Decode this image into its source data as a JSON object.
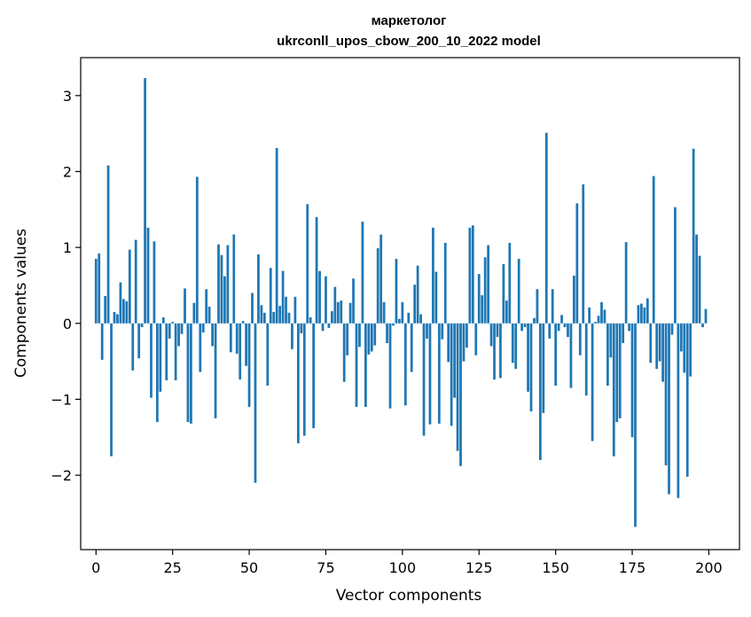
{
  "chart_data": {
    "type": "bar",
    "title": "маркетолог",
    "subtitle": "ukrconll_upos_cbow_200_10_2022 model",
    "xlabel": "Vector components",
    "ylabel": "Components values",
    "xlim": [
      -5,
      210
    ],
    "ylim": [
      -2.98,
      3.5
    ],
    "xticks": [
      0,
      25,
      50,
      75,
      100,
      125,
      150,
      175,
      200
    ],
    "yticks": [
      -2,
      -1,
      0,
      1,
      2,
      3
    ],
    "xtick_labels": [
      "0",
      "25",
      "50",
      "75",
      "100",
      "125",
      "150",
      "175",
      "200"
    ],
    "ytick_labels": [
      "−2",
      "−1",
      "0",
      "1",
      "2",
      "3"
    ],
    "grid": false,
    "bar_color": "#1f77b4",
    "x": [
      0,
      1,
      2,
      3,
      4,
      5,
      6,
      7,
      8,
      9,
      10,
      11,
      12,
      13,
      14,
      15,
      16,
      17,
      18,
      19,
      20,
      21,
      22,
      23,
      24,
      25,
      26,
      27,
      28,
      29,
      30,
      31,
      32,
      33,
      34,
      35,
      36,
      37,
      38,
      39,
      40,
      41,
      42,
      43,
      44,
      45,
      46,
      47,
      48,
      49,
      50,
      51,
      52,
      53,
      54,
      55,
      56,
      57,
      58,
      59,
      60,
      61,
      62,
      63,
      64,
      65,
      66,
      67,
      68,
      69,
      70,
      71,
      72,
      73,
      74,
      75,
      76,
      77,
      78,
      79,
      80,
      81,
      82,
      83,
      84,
      85,
      86,
      87,
      88,
      89,
      90,
      91,
      92,
      93,
      94,
      95,
      96,
      97,
      98,
      99,
      100,
      101,
      102,
      103,
      104,
      105,
      106,
      107,
      108,
      109,
      110,
      111,
      112,
      113,
      114,
      115,
      116,
      117,
      118,
      119,
      120,
      121,
      122,
      123,
      124,
      125,
      126,
      127,
      128,
      129,
      130,
      131,
      132,
      133,
      134,
      135,
      136,
      137,
      138,
      139,
      140,
      141,
      142,
      143,
      144,
      145,
      146,
      147,
      148,
      149,
      150,
      151,
      152,
      153,
      154,
      155,
      156,
      157,
      158,
      159,
      160,
      161,
      162,
      163,
      164,
      165,
      166,
      167,
      168,
      169,
      170,
      171,
      172,
      173,
      174,
      175,
      176,
      177,
      178,
      179,
      180,
      181,
      182,
      183,
      184,
      185,
      186,
      187,
      188,
      189,
      190,
      191,
      192,
      193,
      194,
      195,
      196,
      197,
      198,
      199
    ],
    "values": [
      0.85,
      0.92,
      -0.48,
      0.36,
      2.08,
      -1.75,
      0.15,
      0.12,
      0.54,
      0.32,
      0.29,
      0.97,
      -0.62,
      1.1,
      -0.46,
      -0.05,
      3.23,
      1.26,
      -0.98,
      1.08,
      -1.3,
      -0.9,
      0.08,
      -0.75,
      -0.2,
      0.02,
      -0.75,
      -0.3,
      -0.14,
      0.46,
      -1.3,
      -1.32,
      0.27,
      1.93,
      -0.64,
      -0.12,
      0.45,
      0.22,
      -0.3,
      -1.25,
      1.04,
      0.9,
      0.62,
      1.03,
      -0.38,
      1.17,
      -0.4,
      -0.74,
      0.03,
      -0.56,
      -1.1,
      0.4,
      -2.1,
      0.91,
      0.24,
      0.14,
      -0.82,
      0.73,
      0.15,
      2.31,
      0.23,
      0.69,
      0.35,
      0.14,
      -0.34,
      0.35,
      -1.58,
      -0.13,
      -1.48,
      1.57,
      0.08,
      -1.38,
      1.4,
      0.69,
      -0.1,
      0.62,
      -0.06,
      0.16,
      0.48,
      0.28,
      0.3,
      -0.77,
      -0.42,
      0.27,
      0.59,
      -1.1,
      -0.31,
      1.34,
      -1.1,
      -0.41,
      -0.37,
      -0.29,
      0.99,
      1.17,
      0.28,
      -0.26,
      -1.12,
      -0.03,
      0.85,
      0.06,
      0.28,
      -1.08,
      0.14,
      -0.64,
      0.51,
      0.76,
      0.12,
      -1.48,
      -0.2,
      -1.33,
      1.26,
      0.68,
      -1.32,
      -0.21,
      1.06,
      -0.51,
      -1.35,
      -0.98,
      -1.68,
      -1.88,
      -0.5,
      -0.32,
      1.26,
      1.29,
      -0.42,
      0.65,
      0.37,
      0.87,
      1.03,
      -0.3,
      -0.74,
      -0.18,
      -0.72,
      0.78,
      0.3,
      1.06,
      -0.52,
      -0.6,
      0.85,
      -0.1,
      -0.05,
      -0.9,
      -1.16,
      0.07,
      0.45,
      -1.8,
      -1.18,
      2.51,
      -0.2,
      0.45,
      -0.82,
      -0.1,
      0.11,
      -0.05,
      -0.18,
      -0.85,
      0.63,
      1.58,
      -0.42,
      1.83,
      -0.95,
      0.21,
      -1.55,
      0.02,
      0.1,
      0.28,
      0.18,
      -0.82,
      -0.45,
      -1.75,
      -1.3,
      -1.25,
      -0.26,
      1.07,
      -0.1,
      -1.5,
      -2.68,
      0.24,
      0.26,
      0.21,
      0.33,
      -0.52,
      1.94,
      -0.6,
      -0.5,
      -0.77,
      -1.87,
      -2.25,
      -0.15,
      1.53,
      -2.3,
      -0.37,
      -0.65,
      -2.02,
      -0.7,
      2.3,
      1.17,
      0.89,
      -0.05,
      0.19
    ]
  }
}
